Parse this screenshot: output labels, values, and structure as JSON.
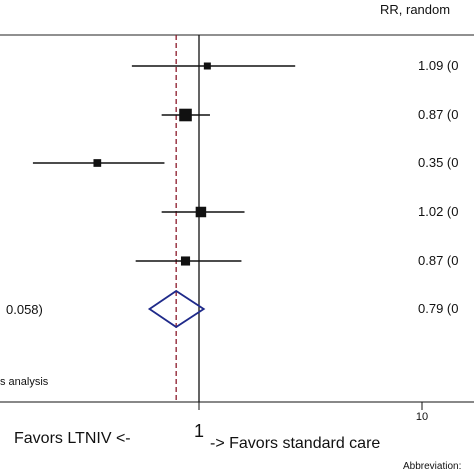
{
  "header": {
    "column_title": "RR, random"
  },
  "left_fragments": {
    "heterogeneity_p": "0.058)",
    "footnote": "s analysis"
  },
  "x_axis": {
    "tick_labels": [
      "1",
      "10"
    ],
    "left_label": "Favors LTNIV <-",
    "right_label": "-> Favors standard care"
  },
  "abbreviation": "Abbreviation:",
  "colors": {
    "marker": "#111111",
    "pooled_diamond": "#1f2a8a",
    "reference_line": "#8b1a2b"
  },
  "chart_data": {
    "type": "forest",
    "scale": "log",
    "xlim": [
      0.1,
      10
    ],
    "null_value": 1,
    "pooled_reference_line": 0.79,
    "studies": [
      {
        "rr": 1.09,
        "ci": [
          0.5,
          2.7
        ],
        "rr_label": "1.09 (0",
        "weight": 1.0
      },
      {
        "rr": 0.87,
        "ci": [
          0.68,
          1.12
        ],
        "rr_label": "0.87 (0",
        "weight": 1.8
      },
      {
        "rr": 0.35,
        "ci": [
          0.18,
          0.7
        ],
        "rr_label": "0.35 (0",
        "weight": 1.1
      },
      {
        "rr": 1.02,
        "ci": [
          0.68,
          1.6
        ],
        "rr_label": "1.02 (0",
        "weight": 1.5
      },
      {
        "rr": 0.87,
        "ci": [
          0.52,
          1.55
        ],
        "rr_label": "0.87 (0",
        "weight": 1.3
      }
    ],
    "pooled": {
      "rr": 0.79,
      "ci": [
        0.6,
        1.05
      ],
      "rr_label": "0.79 (0"
    }
  }
}
